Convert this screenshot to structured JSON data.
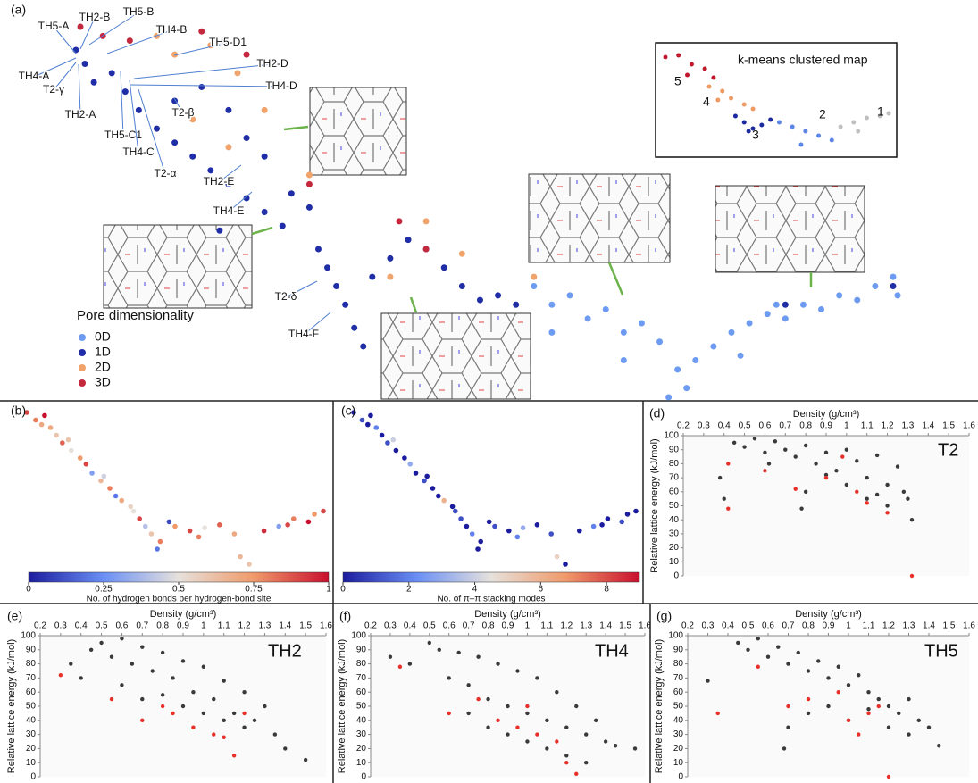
{
  "chart_data": [
    {
      "type": "map",
      "panel": "(a)",
      "legend_title": "Pore dimensionality",
      "series": [
        {
          "name": "0D",
          "color": "#6d9bf1",
          "x": [
            600,
            620,
            640,
            660,
            680,
            700,
            720,
            740,
            760,
            770,
            780,
            800,
            820,
            840,
            860,
            880,
            900,
            920,
            940,
            960,
            980,
            1000,
            620,
            700,
            750,
            1005,
            830,
            870
          ],
          "y": [
            140,
            120,
            130,
            105,
            115,
            90,
            100,
            80,
            50,
            30,
            60,
            75,
            90,
            100,
            110,
            105,
            120,
            115,
            130,
            125,
            140,
            150,
            90,
            60,
            20,
            130,
            65,
            120
          ]
        },
        {
          "name": "1D",
          "color": "#1f2ea6",
          "x": [
            90,
            100,
            110,
            130,
            145,
            160,
            180,
            200,
            220,
            240,
            260,
            280,
            300,
            320,
            330,
            350,
            360,
            370,
            380,
            390,
            400,
            410,
            420,
            440,
            460,
            480,
            500,
            520,
            540,
            560,
            580,
            200,
            230,
            260,
            280,
            300,
            880,
            1000,
            250
          ],
          "y": [
            395,
            380,
            360,
            370,
            350,
            330,
            310,
            295,
            280,
            265,
            250,
            235,
            220,
            205,
            240,
            225,
            180,
            160,
            140,
            120,
            95,
            75,
            150,
            170,
            190,
            180,
            160,
            140,
            125,
            130,
            120,
            340,
            355,
            330,
            300,
            280,
            120,
            140,
            200
          ]
        },
        {
          "name": "2D",
          "color": "#f0a46c",
          "x": [
            180,
            200,
            240,
            270,
            300,
            220,
            260,
            350,
            480,
            520,
            440,
            600
          ],
          "y": [
            410,
            390,
            400,
            370,
            330,
            320,
            290,
            260,
            210,
            175,
            150,
            150
          ]
        },
        {
          "name": "3D",
          "color": "#c4283c",
          "x": [
            95,
            120,
            150,
            230,
            280,
            450,
            480,
            350
          ],
          "y": [
            420,
            410,
            405,
            415,
            390,
            210,
            180,
            250
          ]
        }
      ],
      "annotations": [
        "TH5-A",
        "TH2-B",
        "TH5-B",
        "TH4-B",
        "TH5-D1",
        "TH2-D",
        "TH4-D",
        "TH4-A",
        "T2-γ",
        "TH2-A",
        "TH5-C1",
        "TH4-C",
        "T2-β",
        "T2-α",
        "TH2-E",
        "TH4-E",
        "T2-δ",
        "TH4-F"
      ],
      "inset": {
        "title": "k-means clustered map",
        "series": [
          {
            "name": "1",
            "color": "#c0c0c0",
            "x": [
              945,
              960,
              975,
              990,
              1000,
              965
            ],
            "y": [
              60,
              65,
              70,
              72,
              75,
              55
            ]
          },
          {
            "name": "2",
            "color": "#5b86e6",
            "x": [
              875,
              890,
              905,
              920,
              935,
              900
            ],
            "y": [
              65,
              60,
              55,
              50,
              45,
              40
            ]
          },
          {
            "name": "3",
            "color": "#1c2aa0",
            "x": [
              825,
              835,
              845,
              855,
              865,
              840
            ],
            "y": [
              72,
              65,
              58,
              62,
              68,
              55
            ]
          },
          {
            "name": "4",
            "color": "#ee9a62",
            "x": [
              795,
              810,
              820,
              835,
              845,
              805
            ],
            "y": [
              105,
              100,
              92,
              85,
              80,
              90
            ]
          },
          {
            "name": "5",
            "color": "#c0182c",
            "x": [
              745,
              760,
              775,
              790,
              800,
              770
            ],
            "y": [
              138,
              140,
              130,
              125,
              115,
              118
            ]
          }
        ]
      }
    },
    {
      "type": "colormap",
      "panel": "(b)",
      "x": [
        0,
        3,
        6,
        8,
        10,
        12,
        15,
        18,
        20,
        22,
        25,
        28,
        30,
        32,
        35,
        38,
        40,
        42,
        45,
        48,
        50,
        55,
        60,
        65,
        70,
        75,
        80,
        85,
        90,
        95,
        100,
        5,
        14,
        26,
        36,
        44,
        58,
        72,
        88,
        97
      ],
      "y": [
        100,
        95,
        98,
        90,
        85,
        80,
        75,
        70,
        66,
        60,
        55,
        50,
        45,
        42,
        38,
        30,
        25,
        20,
        15,
        28,
        25,
        22,
        24,
        26,
        20,
        0,
        22,
        25,
        30,
        28,
        35,
        92,
        82,
        58,
        35,
        10,
        18,
        5,
        26,
        33
      ],
      "values": [
        0.9,
        0.8,
        1,
        0.7,
        0.6,
        0.85,
        0.5,
        0.75,
        0.9,
        0.3,
        0.65,
        0.8,
        0.2,
        0.7,
        0.55,
        0.9,
        0.4,
        0.6,
        0.8,
        0.1,
        0.75,
        0.9,
        0.5,
        0.85,
        0.7,
        0.6,
        0.95,
        0.3,
        0.8,
        1,
        0.9,
        0.7,
        0.6,
        0.45,
        0.5,
        0.2,
        0.8,
        0.65,
        0.9,
        0.75
      ],
      "colorbar": {
        "label": "No. of hydrogen bonds per hydrogen-bond site",
        "clim": [
          0,
          1
        ],
        "ticks": [
          0,
          0.25,
          0.5,
          0.75,
          1
        ],
        "colors": [
          "#1c1c9e",
          "#6a8ff5",
          "#e6e1dc",
          "#f09a6a",
          "#c8102e"
        ]
      }
    },
    {
      "type": "colormap",
      "panel": "(c)",
      "x": [
        0,
        3,
        6,
        8,
        10,
        12,
        15,
        18,
        20,
        22,
        25,
        28,
        30,
        32,
        35,
        38,
        40,
        42,
        45,
        48,
        50,
        55,
        60,
        65,
        70,
        75,
        80,
        85,
        90,
        95,
        100,
        5,
        14,
        26,
        36,
        44,
        58,
        72,
        88,
        97
      ],
      "y": [
        100,
        95,
        98,
        90,
        85,
        80,
        75,
        70,
        66,
        60,
        55,
        50,
        45,
        42,
        38,
        30,
        25,
        20,
        15,
        28,
        25,
        22,
        24,
        26,
        20,
        0,
        22,
        25,
        30,
        28,
        35,
        92,
        82,
        58,
        35,
        10,
        18,
        5,
        26,
        33
      ],
      "values": [
        0,
        1,
        0,
        2,
        0,
        1,
        0,
        0,
        3,
        0,
        1,
        0,
        0,
        6,
        0,
        1,
        0,
        2,
        0,
        0,
        1,
        0,
        3,
        0,
        1,
        0,
        0,
        2,
        0,
        1,
        0,
        0,
        4,
        0,
        1,
        0,
        2,
        5,
        0,
        0
      ],
      "colorbar": {
        "label": "No. of π–π stacking modes",
        "clim": [
          0,
          9
        ],
        "ticks": [
          0,
          2,
          4,
          6,
          8
        ],
        "colors": [
          "#1c1c9e",
          "#6a8ff5",
          "#e6e1dc",
          "#f09a6a",
          "#c8102e"
        ]
      }
    },
    {
      "type": "scatter",
      "panel": "(d)",
      "tag": "T2",
      "xlabel": "Density (g/cm³)",
      "ylabel": "Relative lattice energy (kJ/mol)",
      "xlim": [
        0.2,
        1.6
      ],
      "ylim": [
        0,
        100
      ],
      "xticks": [
        0.2,
        0.3,
        0.4,
        0.5,
        0.6,
        0.7,
        0.8,
        0.9,
        1,
        1.1,
        1.2,
        1.3,
        1.4,
        1.5,
        1.6
      ],
      "yticks": [
        0,
        10,
        20,
        30,
        40,
        50,
        60,
        70,
        80,
        90,
        100
      ],
      "series": [
        {
          "color": "#3a3a3a",
          "x": [
            0.45,
            0.5,
            0.55,
            0.6,
            0.65,
            0.7,
            0.75,
            0.8,
            0.85,
            0.9,
            0.95,
            1.0,
            1.05,
            1.1,
            1.15,
            1.2,
            1.25,
            1.3,
            0.62,
            0.8,
            0.9,
            1.0,
            1.1,
            1.2,
            1.28,
            0.38,
            0.4,
            1.32,
            0.78,
            1.15
          ],
          "y": [
            95,
            92,
            98,
            88,
            96,
            90,
            85,
            93,
            80,
            88,
            75,
            90,
            82,
            70,
            86,
            65,
            78,
            55,
            80,
            60,
            72,
            65,
            55,
            50,
            60,
            70,
            55,
            40,
            48,
            58
          ]
        },
        {
          "color": "#e8302a",
          "x": [
            0.42,
            0.6,
            0.75,
            0.9,
            1.05,
            1.1,
            1.2,
            0.42,
            1.32,
            0.98
          ],
          "y": [
            80,
            75,
            62,
            70,
            60,
            52,
            45,
            48,
            0,
            85
          ]
        }
      ]
    },
    {
      "type": "scatter",
      "panel": "(e)",
      "tag": "TH2",
      "xlabel": "Density (g/cm³)",
      "ylabel": "Relative lattice energy (kJ/mol)",
      "xlim": [
        0.2,
        1.6
      ],
      "ylim": [
        0,
        100
      ],
      "xticks": [
        0.2,
        0.3,
        0.4,
        0.5,
        0.6,
        0.7,
        0.8,
        0.9,
        1,
        1.1,
        1.2,
        1.3,
        1.4,
        1.5,
        1.6
      ],
      "yticks": [
        0,
        10,
        20,
        30,
        40,
        50,
        60,
        70,
        80,
        90,
        100
      ],
      "series": [
        {
          "color": "#3a3a3a",
          "x": [
            0.35,
            0.4,
            0.45,
            0.5,
            0.55,
            0.6,
            0.65,
            0.7,
            0.75,
            0.8,
            0.85,
            0.9,
            0.95,
            1.0,
            1.05,
            1.1,
            1.15,
            1.2,
            1.25,
            1.3,
            0.6,
            0.7,
            0.8,
            0.9,
            1.0,
            1.1,
            1.2,
            1.35,
            1.4,
            1.5
          ],
          "y": [
            80,
            70,
            90,
            95,
            85,
            98,
            80,
            92,
            75,
            88,
            70,
            82,
            60,
            78,
            55,
            68,
            45,
            60,
            40,
            50,
            65,
            55,
            58,
            50,
            45,
            40,
            35,
            30,
            20,
            12
          ]
        },
        {
          "color": "#e8302a",
          "x": [
            0.3,
            0.55,
            0.7,
            0.85,
            0.95,
            1.05,
            1.1,
            1.15,
            1.2,
            0.8
          ],
          "y": [
            72,
            55,
            40,
            45,
            35,
            30,
            28,
            15,
            45,
            50
          ]
        }
      ]
    },
    {
      "type": "scatter",
      "panel": "(f)",
      "tag": "TH4",
      "xlabel": "Density (g/cm³)",
      "ylabel": "Relative lattice energy (kJ/mol)",
      "xlim": [
        0.2,
        1.6
      ],
      "ylim": [
        0,
        100
      ],
      "xticks": [
        0.2,
        0.3,
        0.4,
        0.5,
        0.6,
        0.7,
        0.8,
        0.9,
        1,
        1.1,
        1.2,
        1.3,
        1.4,
        1.5,
        1.6
      ],
      "yticks": [
        0,
        10,
        20,
        30,
        40,
        50,
        60,
        70,
        80,
        90,
        100
      ],
      "series": [
        {
          "color": "#3a3a3a",
          "x": [
            0.3,
            0.4,
            0.5,
            0.55,
            0.6,
            0.65,
            0.7,
            0.75,
            0.8,
            0.85,
            0.9,
            0.95,
            1.0,
            1.05,
            1.1,
            1.15,
            1.2,
            1.25,
            1.3,
            1.35,
            1.4,
            0.7,
            0.8,
            0.9,
            1.0,
            1.1,
            1.2,
            1.3,
            1.45,
            1.55
          ],
          "y": [
            85,
            80,
            95,
            90,
            70,
            88,
            65,
            85,
            55,
            80,
            50,
            75,
            45,
            70,
            40,
            60,
            35,
            50,
            30,
            40,
            25,
            45,
            35,
            30,
            25,
            20,
            15,
            10,
            22,
            20
          ]
        },
        {
          "color": "#e8302a",
          "x": [
            0.35,
            0.6,
            0.75,
            0.85,
            0.95,
            1.05,
            1.15,
            1.2,
            1.25,
            1.0
          ],
          "y": [
            78,
            45,
            55,
            40,
            35,
            30,
            25,
            10,
            2,
            50
          ]
        }
      ]
    },
    {
      "type": "scatter",
      "panel": "(g)",
      "tag": "TH5",
      "xlabel": "Density (g/cm³)",
      "ylabel": "Relative lattice energy (kJ/mol)",
      "xlim": [
        0.2,
        1.6
      ],
      "ylim": [
        0,
        100
      ],
      "xticks": [
        0.2,
        0.3,
        0.4,
        0.5,
        0.6,
        0.7,
        0.8,
        0.9,
        1,
        1.1,
        1.2,
        1.3,
        1.4,
        1.5,
        1.6
      ],
      "yticks": [
        0,
        10,
        20,
        30,
        40,
        50,
        60,
        70,
        80,
        90,
        100
      ],
      "series": [
        {
          "color": "#3a3a3a",
          "x": [
            0.3,
            0.45,
            0.5,
            0.55,
            0.6,
            0.65,
            0.7,
            0.75,
            0.8,
            0.85,
            0.9,
            0.95,
            1.0,
            1.05,
            1.1,
            1.15,
            1.2,
            1.25,
            1.3,
            1.35,
            1.4,
            0.7,
            0.8,
            0.9,
            1.0,
            1.1,
            1.2,
            0.68,
            1.3,
            1.45
          ],
          "y": [
            68,
            95,
            90,
            98,
            85,
            92,
            80,
            88,
            75,
            82,
            70,
            78,
            65,
            72,
            60,
            55,
            50,
            45,
            55,
            40,
            35,
            35,
            45,
            50,
            40,
            48,
            35,
            20,
            30,
            22
          ]
        },
        {
          "color": "#e8302a",
          "x": [
            0.35,
            0.55,
            0.7,
            0.8,
            0.95,
            1.0,
            1.1,
            1.15,
            1.2,
            1.05
          ],
          "y": [
            45,
            78,
            50,
            55,
            60,
            40,
            45,
            50,
            0,
            30
          ]
        }
      ]
    }
  ]
}
